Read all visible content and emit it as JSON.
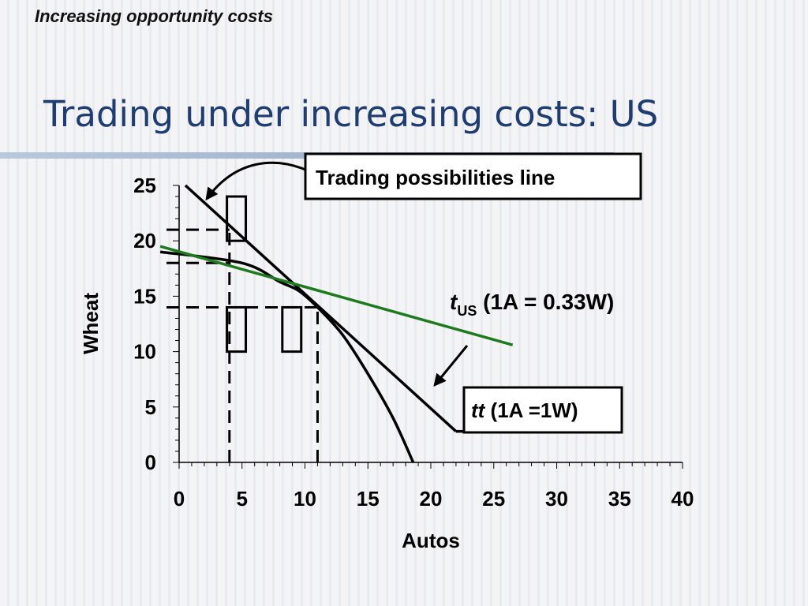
{
  "slide": {
    "section_title": "Increasing opportunity costs",
    "title": "Trading under increasing costs: US"
  },
  "colors": {
    "title": "#1f3d70",
    "green_line": "#1e7a1e",
    "lines": "#000000"
  },
  "chart_data": {
    "type": "line",
    "xlabel": "Autos",
    "ylabel": "Wheat",
    "xlim": [
      0,
      40
    ],
    "ylim": [
      0,
      25
    ],
    "x_ticks": [
      "0",
      "5",
      "10",
      "15",
      "20",
      "25",
      "30",
      "35",
      "40"
    ],
    "y_ticks": [
      "0",
      "5",
      "10",
      "15",
      "20",
      "25"
    ],
    "series": [
      {
        "name": "ppf",
        "points": [
          [
            -1.5,
            19
          ],
          [
            5,
            18
          ],
          [
            8,
            16.3
          ],
          [
            9.5,
            15.5
          ],
          [
            11,
            14
          ],
          [
            13,
            11.5
          ],
          [
            15,
            8
          ],
          [
            17,
            4
          ],
          [
            18.6,
            0
          ]
        ]
      },
      {
        "name": "tt",
        "points": [
          [
            0.5,
            25
          ],
          [
            22,
            2.8
          ]
        ]
      },
      {
        "name": "tUS",
        "color": "#1e7a1e",
        "points": [
          [
            -1.5,
            19.5
          ],
          [
            26.5,
            10.6
          ]
        ]
      }
    ],
    "dashed_guides": [
      {
        "x": 4,
        "y_from": 0,
        "y_to": 21
      },
      {
        "x": 11,
        "y_from": 0,
        "y_to": 14
      },
      {
        "y": 21,
        "x_from": -1,
        "x_to": 4
      },
      {
        "y": 18,
        "x_from": -1,
        "x_to": 4
      },
      {
        "y": 14,
        "x_from": -1,
        "x_to": 11
      }
    ],
    "markers": [
      {
        "x_from": 3.8,
        "x_to": 5.3,
        "y_from": 20,
        "y_to": 24
      },
      {
        "x_from": 3.8,
        "x_to": 5.3,
        "y_from": 10,
        "y_to": 14
      },
      {
        "x_from": 8.2,
        "x_to": 9.7,
        "y_from": 10,
        "y_to": 14
      }
    ],
    "annotations": {
      "trading_line_label": "Trading possibilities line",
      "tus_t": "t",
      "tus_sub": "US",
      "tus_rest": " (1A = 0.33W)",
      "tt_italic": "tt",
      "tt_rest": " (1A =1W)"
    }
  }
}
